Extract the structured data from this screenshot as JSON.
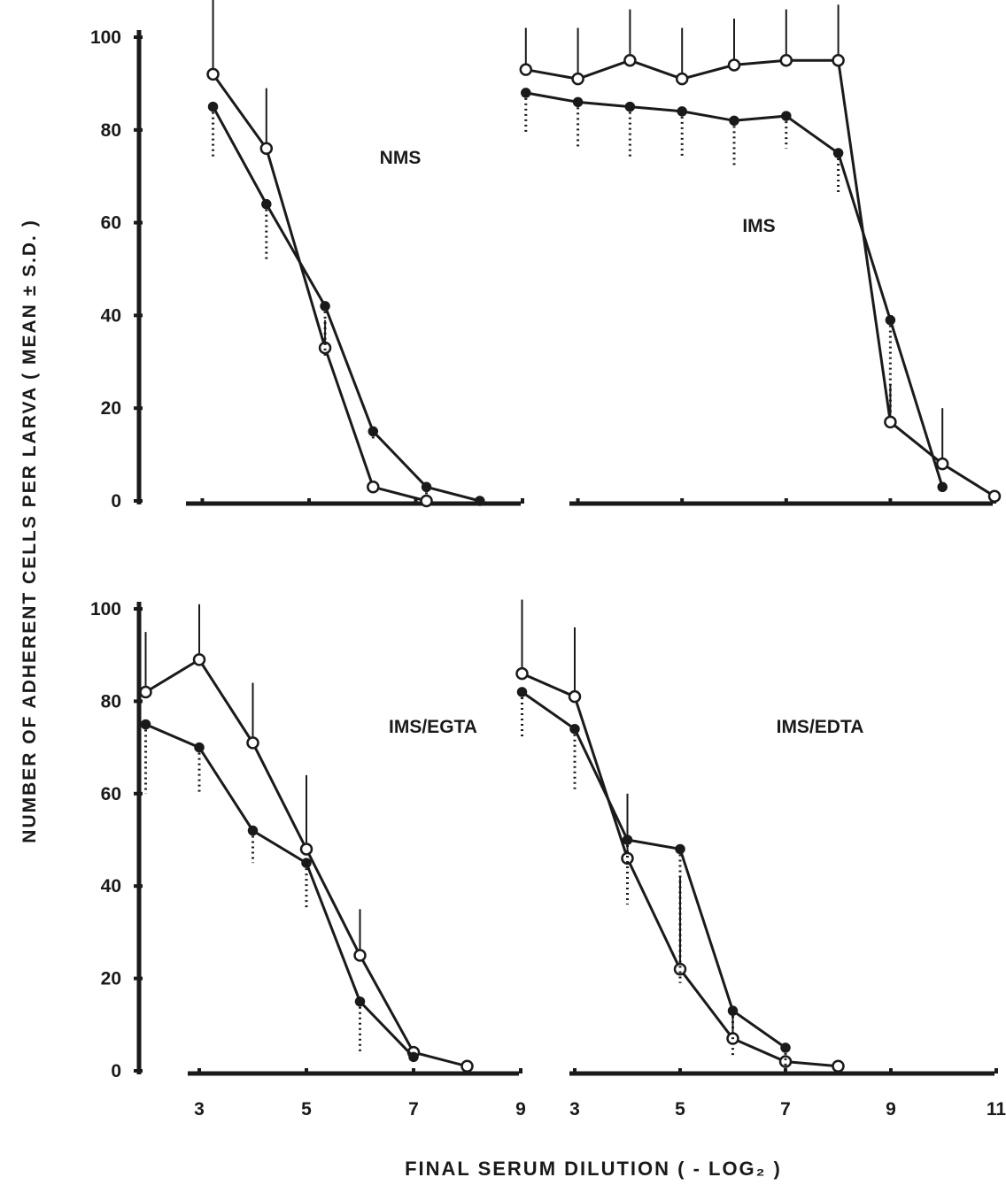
{
  "figure": {
    "y_axis_title": "NUMBER OF ADHERENT CELLS PER LARVA ( MEAN ± S.D. )",
    "x_axis_title": "FINAL SERUM DILUTION ( - LOG₂ )"
  },
  "chart_data": [
    {
      "type": "line",
      "panel": "top-left",
      "title": "NMS",
      "ylim": [
        0,
        100
      ],
      "yticks": [
        0,
        20,
        40,
        60,
        80,
        100
      ],
      "xlim": [
        1,
        9
      ],
      "xtick_marks": [
        3,
        5,
        7,
        9
      ],
      "xtick_labels": [],
      "series": [
        {
          "marker": "open",
          "x": [
            3.2,
            4.2,
            5.3,
            6.2,
            7.2
          ],
          "y": [
            92,
            76,
            33,
            3,
            0
          ],
          "sd": [
            17,
            13,
            6,
            0,
            0
          ]
        },
        {
          "marker": "filled",
          "x": [
            3.2,
            4.2,
            5.3,
            6.2,
            7.2,
            8.2
          ],
          "y": [
            85,
            64,
            42,
            15,
            3,
            0
          ],
          "sd": [
            11,
            12,
            11,
            2,
            2,
            0
          ]
        }
      ]
    },
    {
      "type": "line",
      "panel": "top-right",
      "title": "IMS",
      "ylim": [
        0,
        100
      ],
      "xlim": [
        1,
        11
      ],
      "xtick_marks": [
        3,
        5,
        7,
        9,
        11
      ],
      "xtick_labels": [],
      "series": [
        {
          "marker": "open",
          "x": [
            2,
            3,
            4,
            5,
            6,
            7,
            8,
            9,
            10,
            11
          ],
          "y": [
            93,
            91,
            95,
            91,
            94,
            95,
            95,
            17,
            8,
            1
          ],
          "sd": [
            9,
            11,
            11,
            11,
            10,
            11,
            12,
            8,
            12,
            0
          ]
        },
        {
          "marker": "filled",
          "x": [
            2,
            3,
            4,
            5,
            6,
            7,
            8,
            9,
            10
          ],
          "y": [
            88,
            86,
            85,
            84,
            82,
            83,
            75,
            39,
            3
          ],
          "sd": [
            9,
            10,
            11,
            10,
            10,
            7,
            9,
            20,
            0
          ]
        }
      ]
    },
    {
      "type": "line",
      "panel": "bottom-left",
      "title": "IMS/EGTA",
      "ylim": [
        0,
        100
      ],
      "yticks": [
        0,
        20,
        40,
        60,
        80,
        100
      ],
      "xlim": [
        1,
        9
      ],
      "xtick_marks": [
        3,
        5,
        7,
        9
      ],
      "xtick_labels": [
        "3",
        "5",
        "7",
        "9"
      ],
      "series": [
        {
          "marker": "open",
          "x": [
            2,
            3,
            4,
            5,
            6,
            7,
            8
          ],
          "y": [
            82,
            89,
            71,
            48,
            25,
            4,
            1
          ],
          "sd": [
            13,
            12,
            13,
            16,
            10,
            0,
            0
          ]
        },
        {
          "marker": "filled",
          "x": [
            2,
            3,
            4,
            5,
            6,
            7
          ],
          "y": [
            75,
            70,
            52,
            45,
            15,
            3
          ],
          "sd": [
            15,
            10,
            7,
            10,
            11,
            0
          ]
        }
      ]
    },
    {
      "type": "line",
      "panel": "bottom-right",
      "title": "IMS/EDTA",
      "ylim": [
        0,
        100
      ],
      "xlim": [
        1,
        11
      ],
      "xtick_marks": [
        3,
        5,
        7,
        9,
        11
      ],
      "xtick_labels": [
        "3",
        "5",
        "7",
        "9",
        "11"
      ],
      "series": [
        {
          "marker": "open",
          "x": [
            2,
            3,
            4,
            5,
            6,
            7,
            8
          ],
          "y": [
            86,
            81,
            46,
            22,
            7,
            2,
            1
          ],
          "sd": [
            16,
            15,
            14,
            20,
            6,
            0,
            0
          ]
        },
        {
          "marker": "filled",
          "x": [
            2,
            3,
            4,
            5,
            6,
            7
          ],
          "y": [
            82,
            74,
            50,
            48,
            13,
            5
          ],
          "sd": [
            10,
            13,
            14,
            29,
            10,
            5
          ]
        }
      ]
    }
  ]
}
